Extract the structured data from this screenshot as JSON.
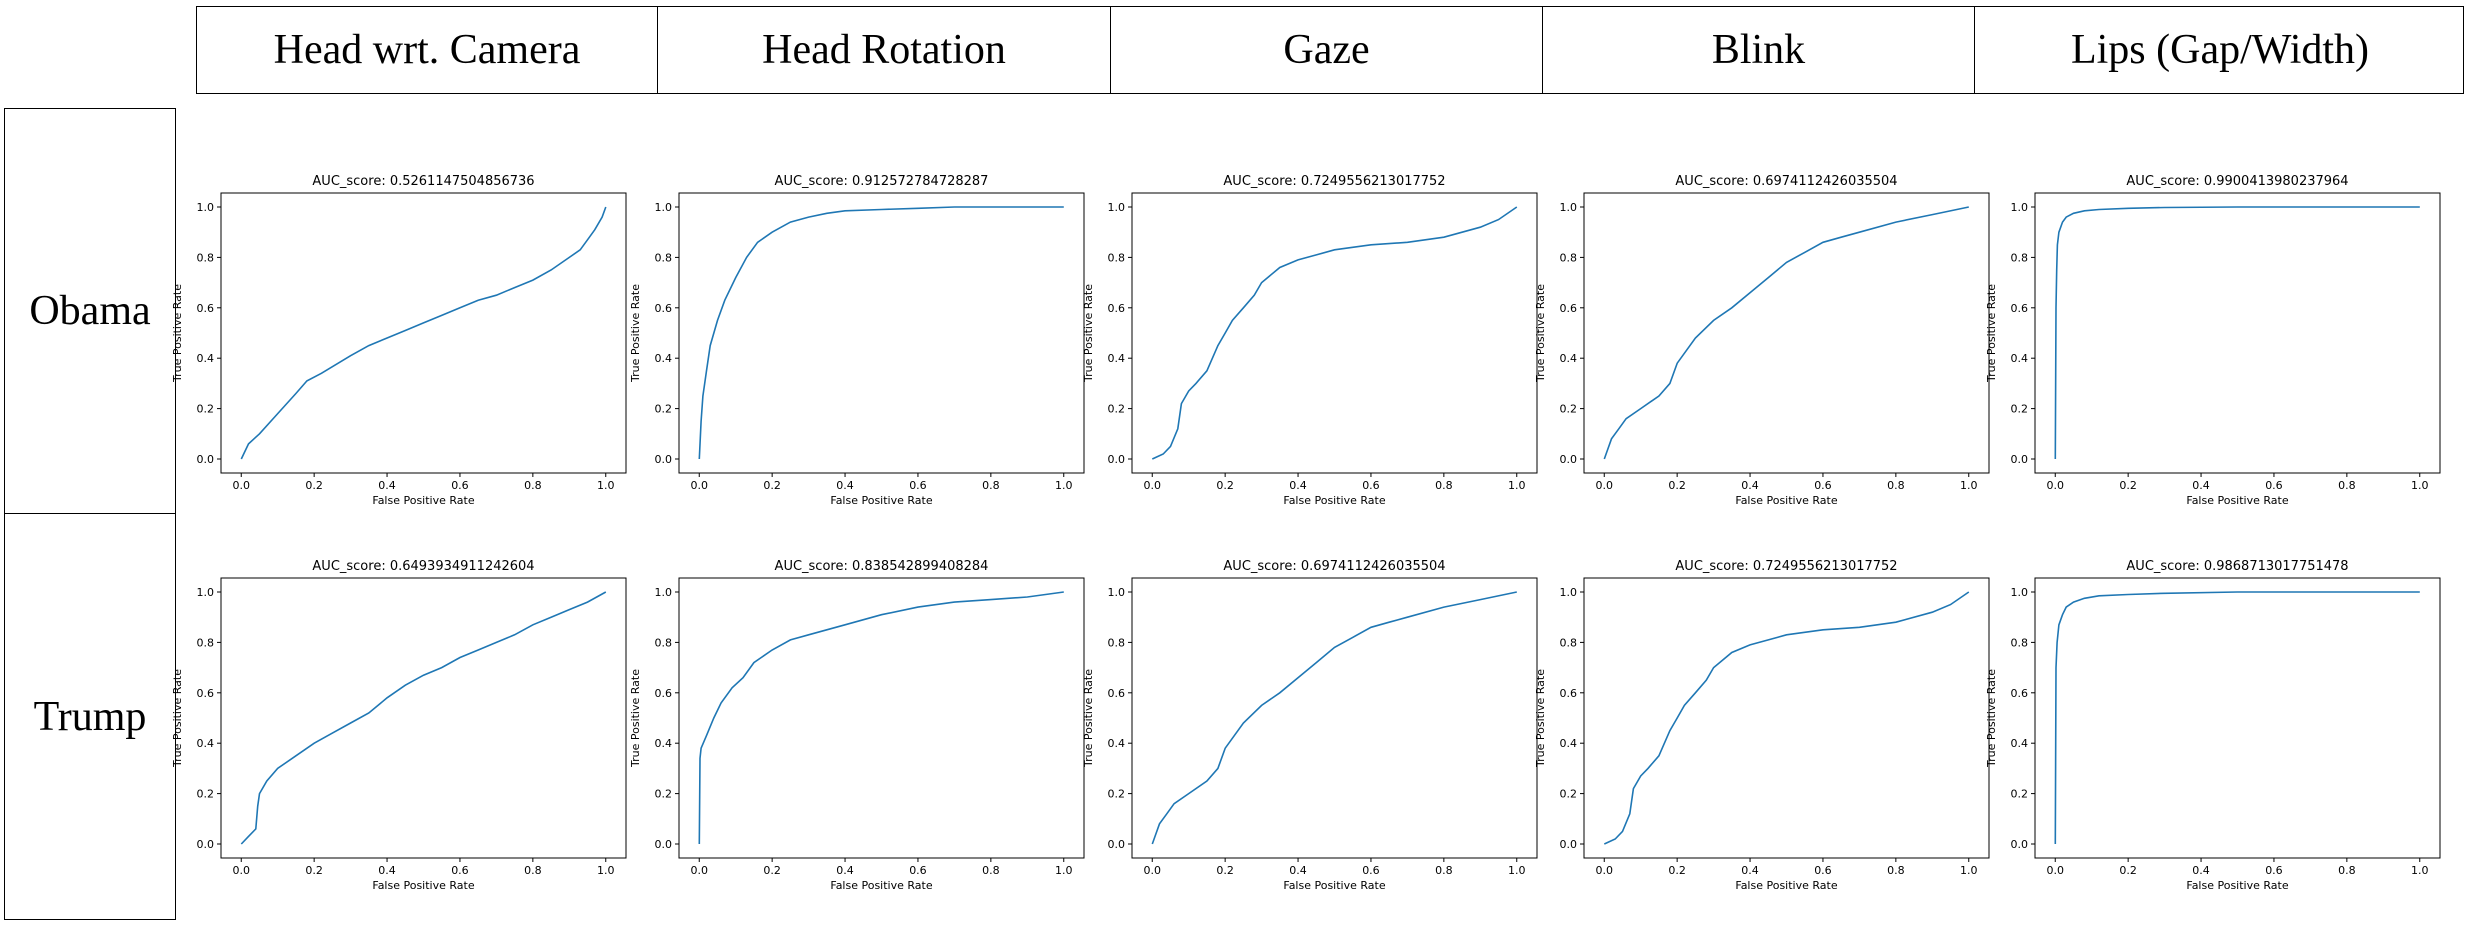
{
  "columns": [
    "Head wrt. Camera",
    "Head Rotation",
    "Gaze",
    "Blink",
    "Lips (Gap/Width)"
  ],
  "rows": [
    "Obama",
    "Trump"
  ],
  "colors": {
    "line": "#1f77b4",
    "axis": "#000000"
  },
  "chart_data": [
    {
      "type": "line",
      "row": "Obama",
      "column": "Head wrt. Camera",
      "title": "AUC_score: 0.5261147504856736",
      "xlabel": "False Positive Rate",
      "ylabel": "True Positive Rate",
      "xlim": [
        0,
        1
      ],
      "ylim": [
        0,
        1
      ],
      "xticks": [
        "0.0",
        "0.2",
        "0.4",
        "0.6",
        "0.8",
        "1.0"
      ],
      "yticks": [
        "0.0",
        "0.2",
        "0.4",
        "0.6",
        "0.8",
        "1.0"
      ],
      "x": [
        0,
        0.02,
        0.05,
        0.1,
        0.15,
        0.18,
        0.22,
        0.3,
        0.35,
        0.4,
        0.45,
        0.5,
        0.55,
        0.6,
        0.65,
        0.7,
        0.75,
        0.8,
        0.85,
        0.9,
        0.93,
        0.95,
        0.97,
        0.99,
        1.0
      ],
      "y": [
        0,
        0.06,
        0.1,
        0.18,
        0.26,
        0.31,
        0.34,
        0.41,
        0.45,
        0.48,
        0.51,
        0.54,
        0.57,
        0.6,
        0.63,
        0.65,
        0.68,
        0.71,
        0.75,
        0.8,
        0.83,
        0.87,
        0.91,
        0.96,
        1.0
      ]
    },
    {
      "type": "line",
      "row": "Obama",
      "column": "Head Rotation",
      "title": "AUC_score: 0.912572784728287",
      "xlabel": "False Positive Rate",
      "ylabel": "True Positive Rate",
      "xlim": [
        0,
        1
      ],
      "ylim": [
        0,
        1
      ],
      "xticks": [
        "0.0",
        "0.2",
        "0.4",
        "0.6",
        "0.8",
        "1.0"
      ],
      "yticks": [
        "0.0",
        "0.2",
        "0.4",
        "0.6",
        "0.8",
        "1.0"
      ],
      "x": [
        0,
        0.005,
        0.01,
        0.02,
        0.03,
        0.05,
        0.07,
        0.1,
        0.13,
        0.16,
        0.2,
        0.25,
        0.3,
        0.35,
        0.4,
        0.5,
        0.6,
        0.7,
        0.8,
        1.0
      ],
      "y": [
        0,
        0.15,
        0.25,
        0.35,
        0.45,
        0.55,
        0.63,
        0.72,
        0.8,
        0.86,
        0.9,
        0.94,
        0.96,
        0.975,
        0.985,
        0.99,
        0.995,
        1.0,
        1.0,
        1.0
      ]
    },
    {
      "type": "line",
      "row": "Obama",
      "column": "Gaze",
      "title": "AUC_score: 0.7249556213017752",
      "xlabel": "False Positive Rate",
      "ylabel": "True Positive Rate",
      "xlim": [
        0,
        1
      ],
      "ylim": [
        0,
        1
      ],
      "xticks": [
        "0.0",
        "0.2",
        "0.4",
        "0.6",
        "0.8",
        "1.0"
      ],
      "yticks": [
        "0.0",
        "0.2",
        "0.4",
        "0.6",
        "0.8",
        "1.0"
      ],
      "x": [
        0,
        0.03,
        0.05,
        0.07,
        0.08,
        0.1,
        0.12,
        0.15,
        0.18,
        0.2,
        0.22,
        0.25,
        0.28,
        0.3,
        0.35,
        0.4,
        0.45,
        0.5,
        0.55,
        0.6,
        0.7,
        0.8,
        0.9,
        0.95,
        1.0
      ],
      "y": [
        0,
        0.02,
        0.05,
        0.12,
        0.22,
        0.27,
        0.3,
        0.35,
        0.45,
        0.5,
        0.55,
        0.6,
        0.65,
        0.7,
        0.76,
        0.79,
        0.81,
        0.83,
        0.84,
        0.85,
        0.86,
        0.88,
        0.92,
        0.95,
        1.0
      ]
    },
    {
      "type": "line",
      "row": "Obama",
      "column": "Blink",
      "title": "AUC_score: 0.6974112426035504",
      "xlabel": "False Positive Rate",
      "ylabel": "True Positive Rate",
      "xlim": [
        0,
        1
      ],
      "ylim": [
        0,
        1
      ],
      "xticks": [
        "0.0",
        "0.2",
        "0.4",
        "0.6",
        "0.8",
        "1.0"
      ],
      "yticks": [
        "0.0",
        "0.2",
        "0.4",
        "0.6",
        "0.8",
        "1.0"
      ],
      "x": [
        0,
        0.01,
        0.02,
        0.04,
        0.06,
        0.1,
        0.15,
        0.18,
        0.2,
        0.25,
        0.3,
        0.35,
        0.4,
        0.45,
        0.5,
        0.55,
        0.6,
        0.65,
        0.7,
        0.8,
        0.9,
        1.0
      ],
      "y": [
        0,
        0.04,
        0.08,
        0.12,
        0.16,
        0.2,
        0.25,
        0.3,
        0.38,
        0.48,
        0.55,
        0.6,
        0.66,
        0.72,
        0.78,
        0.82,
        0.86,
        0.88,
        0.9,
        0.94,
        0.97,
        1.0
      ]
    },
    {
      "type": "line",
      "row": "Obama",
      "column": "Lips (Gap/Width)",
      "title": "AUC_score: 0.9900413980237964",
      "xlabel": "False Positive Rate",
      "ylabel": "True Positive Rate",
      "xlim": [
        0,
        1
      ],
      "ylim": [
        0,
        1
      ],
      "xticks": [
        "0.0",
        "0.2",
        "0.4",
        "0.6",
        "0.8",
        "1.0"
      ],
      "yticks": [
        "0.0",
        "0.2",
        "0.4",
        "0.6",
        "0.8",
        "1.0"
      ],
      "x": [
        0,
        0.002,
        0.004,
        0.006,
        0.01,
        0.02,
        0.03,
        0.05,
        0.08,
        0.12,
        0.2,
        0.3,
        0.5,
        1.0
      ],
      "y": [
        0,
        0.6,
        0.75,
        0.85,
        0.9,
        0.94,
        0.96,
        0.975,
        0.985,
        0.99,
        0.995,
        0.998,
        1.0,
        1.0
      ]
    },
    {
      "type": "line",
      "row": "Trump",
      "column": "Head wrt. Camera",
      "title": "AUC_score: 0.6493934911242604",
      "xlabel": "False Positive Rate",
      "ylabel": "True Positive Rate",
      "xlim": [
        0,
        1
      ],
      "ylim": [
        0,
        1
      ],
      "xticks": [
        "0.0",
        "0.2",
        "0.4",
        "0.6",
        "0.8",
        "1.0"
      ],
      "yticks": [
        "0.0",
        "0.2",
        "0.4",
        "0.6",
        "0.8",
        "1.0"
      ],
      "x": [
        0,
        0.02,
        0.04,
        0.045,
        0.05,
        0.07,
        0.1,
        0.15,
        0.2,
        0.25,
        0.3,
        0.35,
        0.4,
        0.45,
        0.5,
        0.55,
        0.6,
        0.65,
        0.7,
        0.75,
        0.8,
        0.85,
        0.9,
        0.95,
        1.0
      ],
      "y": [
        0,
        0.03,
        0.06,
        0.15,
        0.2,
        0.25,
        0.3,
        0.35,
        0.4,
        0.44,
        0.48,
        0.52,
        0.58,
        0.63,
        0.67,
        0.7,
        0.74,
        0.77,
        0.8,
        0.83,
        0.87,
        0.9,
        0.93,
        0.96,
        1.0
      ]
    },
    {
      "type": "line",
      "row": "Trump",
      "column": "Head Rotation",
      "title": "AUC_score: 0.838542899408284",
      "xlabel": "False Positive Rate",
      "ylabel": "True Positive Rate",
      "xlim": [
        0,
        1
      ],
      "ylim": [
        0,
        1
      ],
      "xticks": [
        "0.0",
        "0.2",
        "0.4",
        "0.6",
        "0.8",
        "1.0"
      ],
      "yticks": [
        "0.0",
        "0.2",
        "0.4",
        "0.6",
        "0.8",
        "1.0"
      ],
      "x": [
        0,
        0.002,
        0.005,
        0.02,
        0.04,
        0.06,
        0.09,
        0.12,
        0.15,
        0.2,
        0.25,
        0.3,
        0.35,
        0.4,
        0.5,
        0.6,
        0.7,
        0.8,
        0.9,
        1.0
      ],
      "y": [
        0,
        0.34,
        0.38,
        0.43,
        0.5,
        0.56,
        0.62,
        0.66,
        0.72,
        0.77,
        0.81,
        0.83,
        0.85,
        0.87,
        0.91,
        0.94,
        0.96,
        0.97,
        0.98,
        1.0
      ]
    },
    {
      "type": "line",
      "row": "Trump",
      "column": "Gaze",
      "title": "AUC_score: 0.6974112426035504",
      "xlabel": "False Positive Rate",
      "ylabel": "True Positive Rate",
      "xlim": [
        0,
        1
      ],
      "ylim": [
        0,
        1
      ],
      "xticks": [
        "0.0",
        "0.2",
        "0.4",
        "0.6",
        "0.8",
        "1.0"
      ],
      "yticks": [
        "0.0",
        "0.2",
        "0.4",
        "0.6",
        "0.8",
        "1.0"
      ],
      "x": [
        0,
        0.01,
        0.02,
        0.04,
        0.06,
        0.1,
        0.15,
        0.18,
        0.2,
        0.25,
        0.3,
        0.35,
        0.4,
        0.45,
        0.5,
        0.55,
        0.6,
        0.65,
        0.7,
        0.8,
        0.9,
        1.0
      ],
      "y": [
        0,
        0.04,
        0.08,
        0.12,
        0.16,
        0.2,
        0.25,
        0.3,
        0.38,
        0.48,
        0.55,
        0.6,
        0.66,
        0.72,
        0.78,
        0.82,
        0.86,
        0.88,
        0.9,
        0.94,
        0.97,
        1.0
      ]
    },
    {
      "type": "line",
      "row": "Trump",
      "column": "Blink",
      "title": "AUC_score: 0.7249556213017752",
      "xlabel": "False Positive Rate",
      "ylabel": "True Positive Rate",
      "xlim": [
        0,
        1
      ],
      "ylim": [
        0,
        1
      ],
      "xticks": [
        "0.0",
        "0.2",
        "0.4",
        "0.6",
        "0.8",
        "1.0"
      ],
      "yticks": [
        "0.0",
        "0.2",
        "0.4",
        "0.6",
        "0.8",
        "1.0"
      ],
      "x": [
        0,
        0.03,
        0.05,
        0.07,
        0.08,
        0.1,
        0.12,
        0.15,
        0.18,
        0.2,
        0.22,
        0.25,
        0.28,
        0.3,
        0.35,
        0.4,
        0.45,
        0.5,
        0.55,
        0.6,
        0.7,
        0.8,
        0.9,
        0.95,
        1.0
      ],
      "y": [
        0,
        0.02,
        0.05,
        0.12,
        0.22,
        0.27,
        0.3,
        0.35,
        0.45,
        0.5,
        0.55,
        0.6,
        0.65,
        0.7,
        0.76,
        0.79,
        0.81,
        0.83,
        0.84,
        0.85,
        0.86,
        0.88,
        0.92,
        0.95,
        1.0
      ]
    },
    {
      "type": "line",
      "row": "Trump",
      "column": "Lips (Gap/Width)",
      "title": "AUC_score: 0.9868713017751478",
      "xlabel": "False Positive Rate",
      "ylabel": "True Positive Rate",
      "xlim": [
        0,
        1
      ],
      "ylim": [
        0,
        1
      ],
      "xticks": [
        "0.0",
        "0.2",
        "0.4",
        "0.6",
        "0.8",
        "1.0"
      ],
      "yticks": [
        "0.0",
        "0.2",
        "0.4",
        "0.6",
        "0.8",
        "1.0"
      ],
      "x": [
        0,
        0.002,
        0.005,
        0.01,
        0.02,
        0.03,
        0.05,
        0.08,
        0.12,
        0.2,
        0.3,
        0.5,
        1.0
      ],
      "y": [
        0,
        0.7,
        0.8,
        0.87,
        0.91,
        0.94,
        0.96,
        0.975,
        0.985,
        0.99,
        0.995,
        1.0,
        1.0
      ]
    }
  ]
}
